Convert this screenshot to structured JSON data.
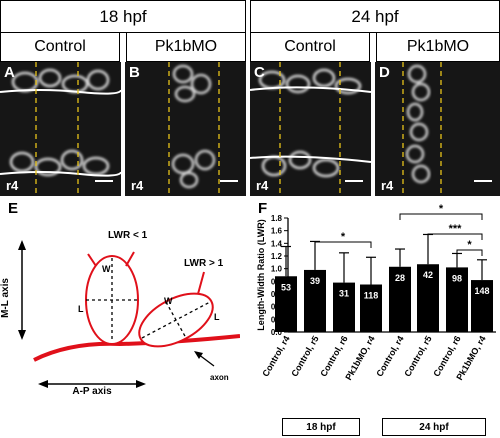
{
  "top_headers": [
    "18 hpf",
    "24 hpf"
  ],
  "column_headers": [
    "Control",
    "Pk1bMO",
    "Control",
    "Pk1bMO"
  ],
  "panels": [
    {
      "letter": "A",
      "rhombomere": "r4"
    },
    {
      "letter": "B",
      "rhombomere": "r4"
    },
    {
      "letter": "C",
      "rhombomere": "r4"
    },
    {
      "letter": "D",
      "rhombomere": "r4"
    }
  ],
  "diagram": {
    "letter": "E",
    "ml_axis": "M-L axis",
    "ap_axis": "A-P axis",
    "lwr_lt": "LWR < 1",
    "lwr_gt": "LWR > 1",
    "w": "W",
    "l": "L",
    "axon": "axon"
  },
  "colors": {
    "diagram_red": "#e0101a",
    "dash_yellow": "#e6c21a"
  },
  "chart_data": {
    "type": "bar",
    "letter": "F",
    "ylabel": "Length-Width Ratio (LWR)",
    "ylim": [
      0,
      1.8
    ],
    "yticks": [
      "0.0",
      "0.2",
      "0.4",
      "0.6",
      "0.8",
      "1.0",
      "1.2",
      "1.4",
      "1.6",
      "1.8"
    ],
    "categories": [
      "Control, r4",
      "Control, r5",
      "Control, r6",
      "Pk1bMO, r4",
      "Control, r4",
      "Control, r5",
      "Control, r6",
      "Pk1bMO, r4"
    ],
    "values": [
      0.88,
      0.98,
      0.78,
      0.75,
      1.03,
      1.07,
      1.02,
      0.82
    ],
    "errors": [
      0.47,
      0.45,
      0.47,
      0.43,
      0.28,
      0.47,
      0.22,
      0.32
    ],
    "n_labels": [
      "53",
      "39",
      "31",
      "118",
      "28",
      "42",
      "98",
      "148"
    ],
    "groups": [
      "18 hpf",
      "24 hpf"
    ],
    "significance": [
      "*",
      "*",
      "***",
      "*"
    ]
  }
}
